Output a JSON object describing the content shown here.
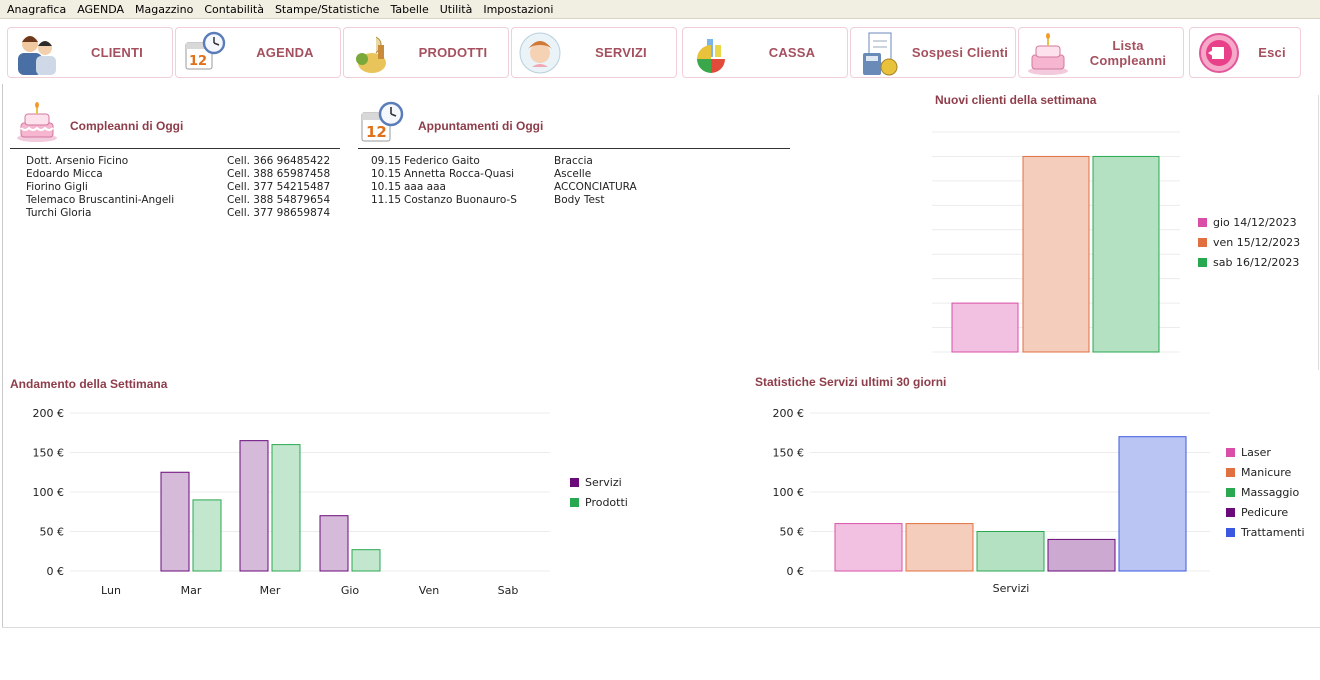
{
  "menu": [
    "Anagrafica",
    "AGENDA",
    "Magazzino",
    "Contabilità",
    "Stampe/Statistiche",
    "Tabelle",
    "Utilità",
    "Impostazioni"
  ],
  "toolbar": [
    {
      "label": "CLIENTI",
      "icon": "clients-icon"
    },
    {
      "label": "AGENDA",
      "icon": "calendar-clock-icon"
    },
    {
      "label": "PRODOTTI",
      "icon": "products-icon"
    },
    {
      "label": "SERVIZI",
      "icon": "services-icon"
    },
    {
      "label": "CASSA",
      "icon": "cash-chart-icon"
    },
    {
      "label": "Sospesi Clienti",
      "icon": "calculator-icon"
    },
    {
      "label": "Lista Compleanni",
      "icon": "birthday-cake-icon"
    },
    {
      "label": "Esci",
      "icon": "exit-icon"
    }
  ],
  "birthdays": {
    "title": "Compleanni di Oggi",
    "rows": [
      {
        "name": "Dott. Arsenio Ficino",
        "phone": "Cell. 366 96485422"
      },
      {
        "name": "Edoardo Micca",
        "phone": "Cell. 388 65987458"
      },
      {
        "name": "Fiorino Gigli",
        "phone": "Cell. 377 54215487"
      },
      {
        "name": "Telemaco Bruscantini-Angeli",
        "phone": "Cell. 388 54879654"
      },
      {
        "name": "Turchi Gloria",
        "phone": "Cell. 377 98659874"
      }
    ]
  },
  "appointments": {
    "title": "Appuntamenti di Oggi",
    "rows": [
      {
        "time": "09.15",
        "client": "Federico Gaito",
        "service": "Braccia"
      },
      {
        "time": "10.15",
        "client": "Annetta Rocca-Quasi",
        "service": "Ascelle"
      },
      {
        "time": "10.15",
        "client": "aaa aaa",
        "service": "ACCONCIATURA"
      },
      {
        "time": "11.15",
        "client": "Costanzo Buonauro-S",
        "service": "Body Test"
      }
    ]
  },
  "chart_data": [
    {
      "type": "bar",
      "title": "Nuovi clienti della settimana",
      "categories": [
        "gio 14/12/2023",
        "ven 15/12/2023",
        "sab 16/12/2023"
      ],
      "values": [
        2,
        8,
        8
      ],
      "ylim": [
        0,
        9
      ],
      "grid": true,
      "legend": "right",
      "colors": [
        "#d94fa8",
        "#e07040",
        "#28a850"
      ]
    },
    {
      "type": "bar",
      "title": "Andamento della Settimana",
      "categories": [
        "Lun",
        "Mar",
        "Mer",
        "Gio",
        "Ven",
        "Sab"
      ],
      "series": [
        {
          "name": "Servizi",
          "values": [
            0,
            125,
            165,
            70,
            0,
            0
          ],
          "color": "#6a0a7a"
        },
        {
          "name": "Prodotti",
          "values": [
            0,
            90,
            160,
            27,
            0,
            0
          ],
          "color": "#28a850"
        }
      ],
      "yticks": [
        "0 €",
        "50 €",
        "100 €",
        "150 €",
        "200 €"
      ],
      "ylim": [
        0,
        200
      ],
      "grid": true,
      "legend": "right"
    },
    {
      "type": "bar",
      "title": "Statistiche Servizi ultimi 30 giorni",
      "categories": [
        "Servizi"
      ],
      "series": [
        {
          "name": "Laser",
          "values": [
            60
          ],
          "color": "#d94fa8"
        },
        {
          "name": "Manicure",
          "values": [
            60
          ],
          "color": "#e07040"
        },
        {
          "name": "Massaggio",
          "values": [
            50
          ],
          "color": "#28a850"
        },
        {
          "name": "Pedicure",
          "values": [
            40
          ],
          "color": "#6a0a7a"
        },
        {
          "name": "Trattamenti",
          "values": [
            170
          ],
          "color": "#3a58e0"
        }
      ],
      "yticks": [
        "0 €",
        "50 €",
        "100 €",
        "150 €",
        "200 €"
      ],
      "ylim": [
        0,
        200
      ],
      "grid": true,
      "legend": "right"
    }
  ]
}
